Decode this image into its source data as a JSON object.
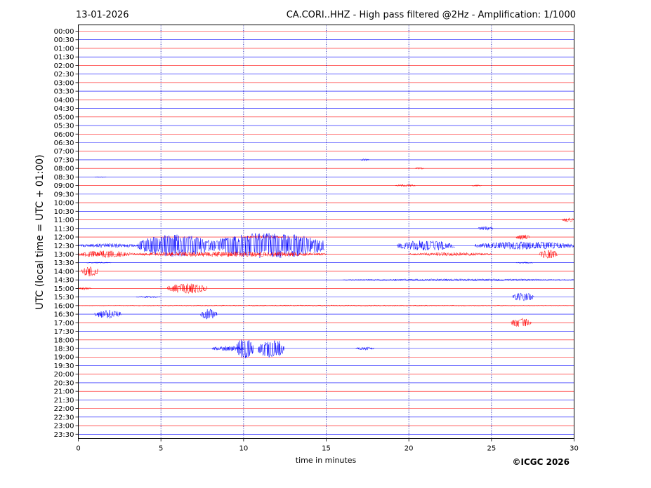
{
  "date": "13-01-2026",
  "title": "CA.CORI..HHZ - High pass filtered @2Hz - Amplification: 1/1000",
  "copyright": "©ICGC 2026",
  "colors": {
    "even": "#ff0000",
    "odd": "#0000ff",
    "grid": "#0000aa"
  },
  "chart_data": {
    "type": "line",
    "xlabel": "time in minutes",
    "ylabel": "UTC (local time = UTC + 01:00)",
    "xlim": [
      0,
      30
    ],
    "x_ticks": [
      "0",
      "5",
      "10",
      "15",
      "20",
      "25",
      "30"
    ],
    "row_labels": [
      "00:00",
      "00:30",
      "01:00",
      "01:30",
      "02:00",
      "02:30",
      "03:00",
      "03:30",
      "04:00",
      "04:30",
      "05:00",
      "05:30",
      "06:00",
      "06:30",
      "07:00",
      "07:30",
      "08:00",
      "08:30",
      "09:00",
      "09:30",
      "10:00",
      "10:30",
      "11:00",
      "11:30",
      "12:00",
      "12:30",
      "13:00",
      "13:30",
      "14:00",
      "14:30",
      "15:00",
      "15:30",
      "16:00",
      "16:30",
      "17:00",
      "17:30",
      "18:00",
      "18:30",
      "19:00",
      "19:30",
      "20:00",
      "20:30",
      "21:00",
      "21:30",
      "22:00",
      "22:30",
      "23:00",
      "23:30"
    ],
    "grid_x": [
      5,
      10,
      15,
      20,
      25
    ],
    "events": [
      {
        "row": 15,
        "start": 17.1,
        "end": 17.6,
        "amp": 0.12
      },
      {
        "row": 16,
        "start": 20.4,
        "end": 20.9,
        "amp": 0.15
      },
      {
        "row": 17,
        "start": 1.0,
        "end": 1.7,
        "amp": 0.06
      },
      {
        "row": 18,
        "start": 19.2,
        "end": 20.4,
        "amp": 0.15
      },
      {
        "row": 18,
        "start": 23.8,
        "end": 24.4,
        "amp": 0.1
      },
      {
        "row": 22,
        "start": 29.3,
        "end": 30.0,
        "amp": 0.25
      },
      {
        "row": 23,
        "start": 24.2,
        "end": 25.1,
        "amp": 0.25
      },
      {
        "row": 24,
        "start": 10.0,
        "end": 12.4,
        "amp": 0.15
      },
      {
        "row": 24,
        "start": 26.5,
        "end": 27.3,
        "amp": 0.3
      },
      {
        "row": 25,
        "start": 0.0,
        "end": 3.6,
        "amp": 0.25
      },
      {
        "row": 25,
        "start": 3.6,
        "end": 8.2,
        "amp": 1.3
      },
      {
        "row": 25,
        "start": 8.2,
        "end": 14.9,
        "amp": 1.5
      },
      {
        "row": 25,
        "start": 19.3,
        "end": 22.8,
        "amp": 0.6
      },
      {
        "row": 25,
        "start": 24.0,
        "end": 30.0,
        "amp": 0.45
      },
      {
        "row": 26,
        "start": 0.0,
        "end": 3.2,
        "amp": 0.4
      },
      {
        "row": 26,
        "start": 3.2,
        "end": 15.0,
        "amp": 0.3
      },
      {
        "row": 26,
        "start": 20.0,
        "end": 25.0,
        "amp": 0.2
      },
      {
        "row": 26,
        "start": 27.9,
        "end": 29.0,
        "amp": 0.5
      },
      {
        "row": 27,
        "start": 0.5,
        "end": 2.0,
        "amp": 0.08
      },
      {
        "row": 27,
        "start": 26.5,
        "end": 27.5,
        "amp": 0.1
      },
      {
        "row": 28,
        "start": 0.2,
        "end": 1.2,
        "amp": 0.6
      },
      {
        "row": 29,
        "start": 16.0,
        "end": 30.0,
        "amp": 0.12
      },
      {
        "row": 30,
        "start": 5.4,
        "end": 7.8,
        "amp": 0.6
      },
      {
        "row": 30,
        "start": 0.0,
        "end": 0.8,
        "amp": 0.15
      },
      {
        "row": 31,
        "start": 26.3,
        "end": 27.6,
        "amp": 0.5
      },
      {
        "row": 31,
        "start": 3.5,
        "end": 5.0,
        "amp": 0.1
      },
      {
        "row": 32,
        "start": 0.0,
        "end": 30.0,
        "amp": 0.06
      },
      {
        "row": 33,
        "start": 1.0,
        "end": 2.6,
        "amp": 0.5
      },
      {
        "row": 33,
        "start": 7.4,
        "end": 8.4,
        "amp": 0.6
      },
      {
        "row": 34,
        "start": 26.2,
        "end": 27.4,
        "amp": 0.55
      },
      {
        "row": 37,
        "start": 8.1,
        "end": 10.0,
        "amp": 0.3
      },
      {
        "row": 37,
        "start": 9.6,
        "end": 10.6,
        "amp": 1.3
      },
      {
        "row": 37,
        "start": 10.9,
        "end": 12.5,
        "amp": 1.1
      },
      {
        "row": 37,
        "start": 16.8,
        "end": 17.9,
        "amp": 0.2
      }
    ]
  }
}
